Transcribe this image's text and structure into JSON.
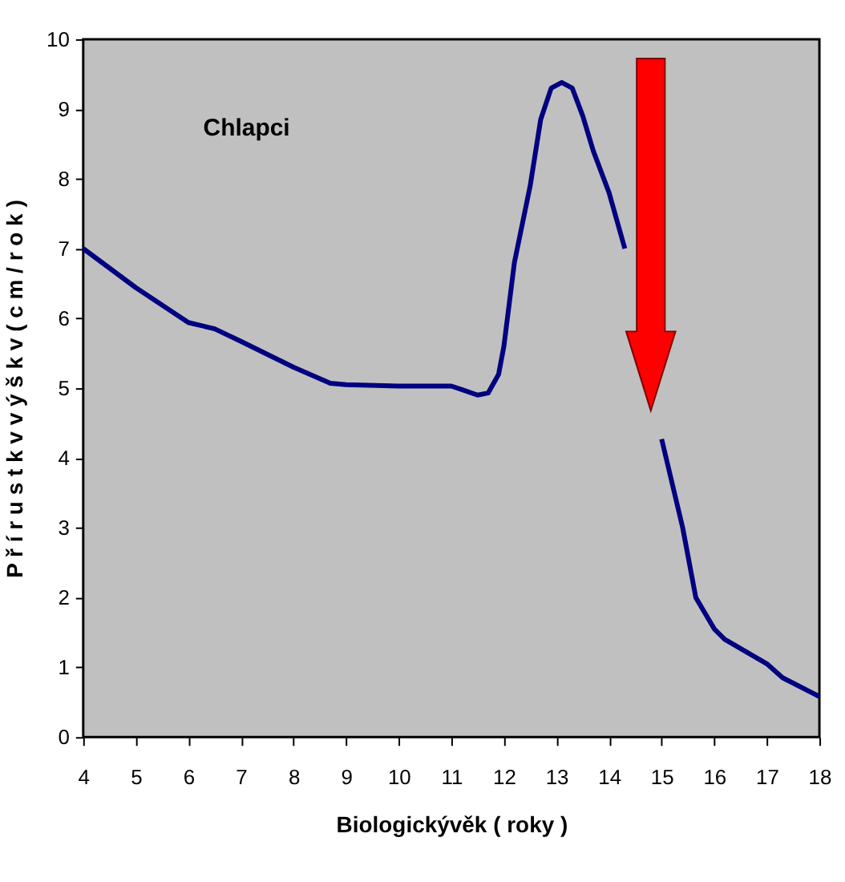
{
  "chart_data": {
    "type": "line",
    "xlabel": "Biologickývěk ( roky )",
    "ylabel": "P ř í r u s t k v  v ý š k v  ( c m / r o k )",
    "annotations": [
      "Chlapci"
    ],
    "xlim": [
      4,
      18
    ],
    "xticks": [
      4,
      5,
      6,
      7,
      8,
      9,
      10,
      11,
      12,
      13,
      14,
      15,
      16,
      17,
      18
    ],
    "ylim": [
      0,
      10
    ],
    "yticks": [
      0,
      1,
      2,
      3,
      4,
      5,
      6,
      7,
      8,
      9,
      10
    ],
    "grid": false,
    "marker": "none",
    "line_style": "solid",
    "series": [
      {
        "color": "#000080",
        "x": [
          4,
          5,
          6,
          6.5,
          7,
          8,
          8.7,
          9,
          10,
          11,
          11.2,
          11.5,
          11.7,
          11.9,
          12,
          12.2,
          12.5,
          12.7,
          12.9,
          13.1,
          13.3,
          13.5,
          13.7,
          14,
          14.3,
          14.6,
          14.8,
          15,
          15.4,
          15.65,
          16,
          16.2,
          17,
          17.3,
          18
        ],
        "values": [
          7.0,
          6.44,
          5.94,
          5.85,
          5.67,
          5.3,
          5.07,
          5.05,
          5.03,
          5.03,
          4.98,
          4.9,
          4.93,
          5.2,
          5.6,
          6.8,
          7.9,
          8.85,
          9.3,
          9.38,
          9.3,
          8.9,
          8.4,
          7.8,
          7.0,
          null,
          null,
          4.27,
          3.0,
          2.0,
          1.55,
          1.4,
          1.05,
          0.85,
          0.58
        ]
      }
    ]
  }
}
